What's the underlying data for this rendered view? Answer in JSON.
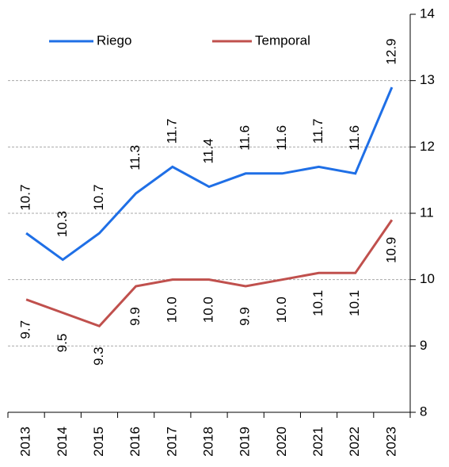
{
  "chart_data": {
    "type": "line",
    "categories": [
      "2013",
      "2014",
      "2015",
      "2016",
      "2017",
      "2018",
      "2019",
      "2020",
      "2021",
      "2022",
      "2023"
    ],
    "series": [
      {
        "name": "Riego",
        "color": "#1f6fe6",
        "values": [
          10.7,
          10.3,
          10.7,
          11.3,
          11.7,
          11.4,
          11.6,
          11.6,
          11.7,
          11.6,
          12.9
        ],
        "value_labels": [
          "10.7",
          "10.3",
          "10.7",
          "11.3",
          "11.7",
          "11.4",
          "11.6",
          "11.6",
          "11.7",
          "11.6",
          "12.9"
        ]
      },
      {
        "name": "Temporal",
        "color": "#c0504d",
        "values": [
          9.7,
          9.5,
          9.3,
          9.9,
          10.0,
          10.0,
          9.9,
          10.0,
          10.1,
          10.1,
          10.9
        ],
        "value_labels": [
          "9.7",
          "9.5",
          "9.3",
          "9.9",
          "10.0",
          "10.0",
          "9.9",
          "10.0",
          "10.1",
          "10.1",
          "10.9"
        ]
      }
    ],
    "ylim": [
      8,
      14
    ],
    "yticks": [
      8,
      9,
      10,
      11,
      12,
      13,
      14
    ],
    "grid": true,
    "legend": "top"
  }
}
